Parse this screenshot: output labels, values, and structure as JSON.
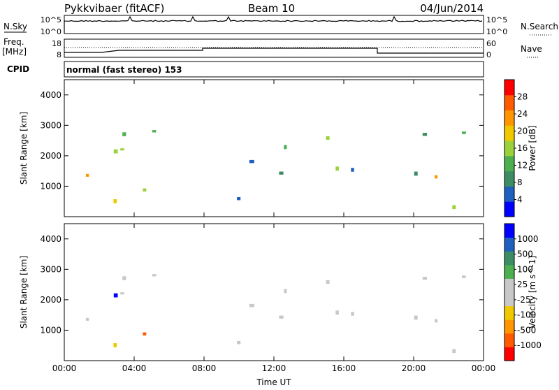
{
  "header": {
    "title": "Pykkvibaer (fitACF)",
    "beam": "Beam 10",
    "date": "04/Jun/2014"
  },
  "strip_labels": {
    "nsky": "N.Sky",
    "nsearch": "N.Search",
    "freq_line1": "Freq.",
    "freq_line2": "[MHz]",
    "nave": "Nave",
    "cpid": "CPID",
    "cpid_value": "normal (fast stereo) 153"
  },
  "noise_axis": {
    "left_top": "10^5",
    "left_bottom": "10^0",
    "right_top": "10^5",
    "right_bottom": "10^0"
  },
  "freq_axis": {
    "left_top": "18",
    "left_bottom": "8",
    "right_top": "60",
    "right_bottom": "0"
  },
  "colors": {
    "power_scale": [
      "#0000ff",
      "#1f5fbf",
      "#3c8c64",
      "#4caf50",
      "#9bd23c",
      "#f0c800",
      "#ff9600",
      "#ff5a00",
      "#ff0000"
    ],
    "velocity_scale": [
      "#ff0000",
      "#ff5a00",
      "#ff9600",
      "#f0c800",
      "#c8c8c8",
      "#c8c8c8",
      "#4caf50",
      "#3c8c64",
      "#1f5fbf",
      "#0000ff"
    ]
  },
  "chart_data": [
    {
      "type": "heatmap",
      "panel": "power",
      "xlabel": "",
      "ylabel": "Slant Range [km]",
      "xlim": [
        "00:00",
        "24:00"
      ],
      "ylim": [
        0,
        4500
      ],
      "yticks": [
        "1000",
        "2000",
        "3000",
        "4000"
      ],
      "colorbar_label": "Power [dB]",
      "colorbar_ticks": [
        "28",
        "24",
        "20",
        "16",
        "12",
        "8",
        "4"
      ],
      "colorbar_range": [
        0,
        32
      ]
    },
    {
      "type": "heatmap",
      "panel": "velocity",
      "xlabel": "Time UT",
      "ylabel": "Slant Range [km]",
      "xlim": [
        "00:00",
        "24:00"
      ],
      "ylim": [
        0,
        4500
      ],
      "xticks": [
        "00:00",
        "04:00",
        "08:00",
        "12:00",
        "16:00",
        "20:00",
        "00:00"
      ],
      "yticks": [
        "1000",
        "2000",
        "3000",
        "4000"
      ],
      "colorbar_label": "Velocity [m s^-1]",
      "colorbar_ticks": [
        "1000",
        "500",
        "100",
        "25",
        "-25",
        "-100",
        "-500",
        "-1000"
      ]
    }
  ]
}
